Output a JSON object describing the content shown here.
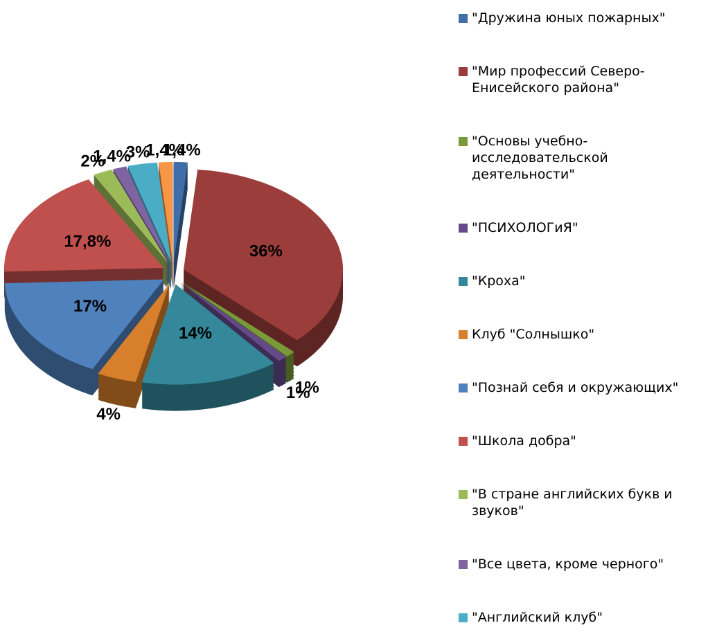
{
  "chart_data": {
    "type": "pie",
    "categories": [
      "\"Дружина юных пожарных\"",
      "\"Мир профессий Северо-Енисейского района\"",
      "\"Основы учебно-исследовательской деятельности\"",
      "\"ПСИХОЛОГиЯ\"",
      "\"Кроха\"",
      "Клуб \"Солнышко\"",
      "\"Познай себя и окружающих\"",
      "\"Школа добра\"",
      "\"В стране английских букв и звуков\"",
      "\"Все цвета, кроме черного\"",
      "\"Английский клуб\"",
      null
    ],
    "values": [
      1.4,
      36,
      1,
      1,
      14,
      4,
      17,
      17.8,
      2,
      1.4,
      3,
      1.4
    ],
    "value_labels": [
      "1,4%",
      "36%",
      "1%",
      "1%",
      "14%",
      "4%",
      "17%",
      "17,8%",
      "2%",
      "1,4%",
      "3%",
      "1,4%"
    ],
    "colors": [
      "#3f6ea8",
      "#9b3d3b",
      "#7a9a3a",
      "#654a8a",
      "#34889a",
      "#d77f2a",
      "#4f81bd",
      "#c0504d",
      "#9bbb59",
      "#8064a2",
      "#4bacc6",
      "#f79646"
    ]
  }
}
